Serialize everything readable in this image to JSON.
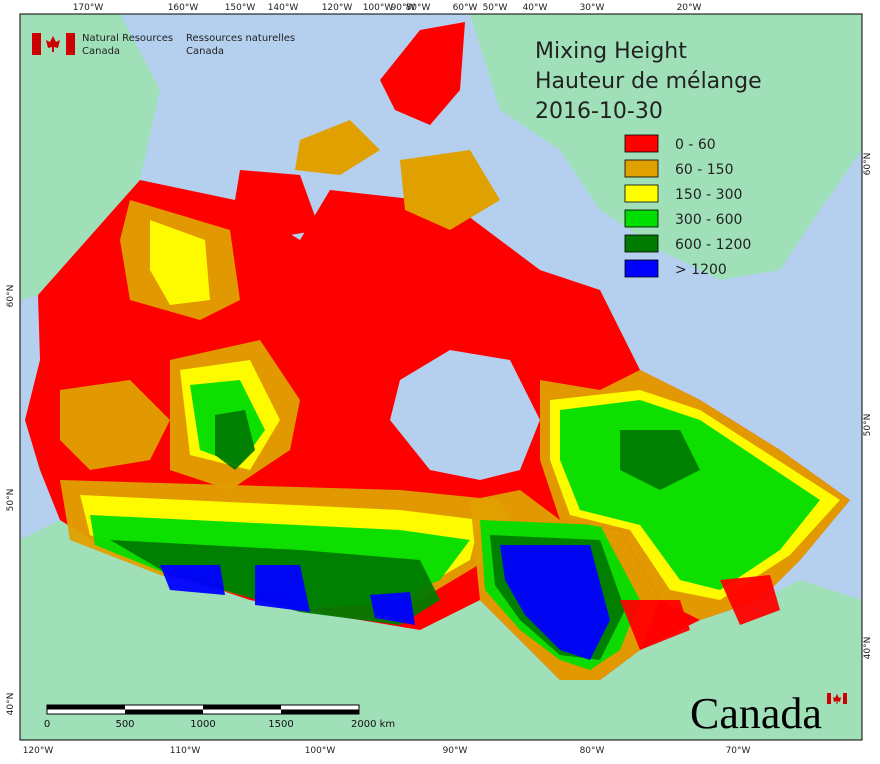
{
  "header": {
    "org_en": [
      "Natural Resources",
      "Canada"
    ],
    "org_fr": [
      "Ressources naturelles",
      "Canada"
    ]
  },
  "title": {
    "line1": "Mixing Height",
    "line2": "Hauteur de mélange",
    "date": "2016-10-30"
  },
  "legend": {
    "items": [
      {
        "label": "0 - 60",
        "color": "#ff0000"
      },
      {
        "label": "60 - 150",
        "color": "#e0a000"
      },
      {
        "label": "150 - 300",
        "color": "#ffff00"
      },
      {
        "label": "300 - 600",
        "color": "#00dd00"
      },
      {
        "label": "600 - 1200",
        "color": "#007a00"
      },
      {
        "label": "> 1200",
        "color": "#0000ff"
      }
    ]
  },
  "graticule": {
    "top": [
      "170°W",
      "160°W",
      "150°W",
      "140°W",
      "120°W",
      "100°W",
      "90°W",
      "80°W",
      "60°W",
      "50°W",
      "40°W",
      "30°W",
      "20°W"
    ],
    "bottom": [
      "120°W",
      "110°W",
      "100°W",
      "90°W",
      "80°W",
      "70°W"
    ],
    "left": [
      "60°N",
      "50°N",
      "40°N"
    ],
    "right": [
      "60°N",
      "50°N",
      "40°N"
    ]
  },
  "scale_bar": {
    "labels": [
      "0",
      "500",
      "1000",
      "1500",
      "2000 km"
    ]
  },
  "wordmark": "Canada"
}
